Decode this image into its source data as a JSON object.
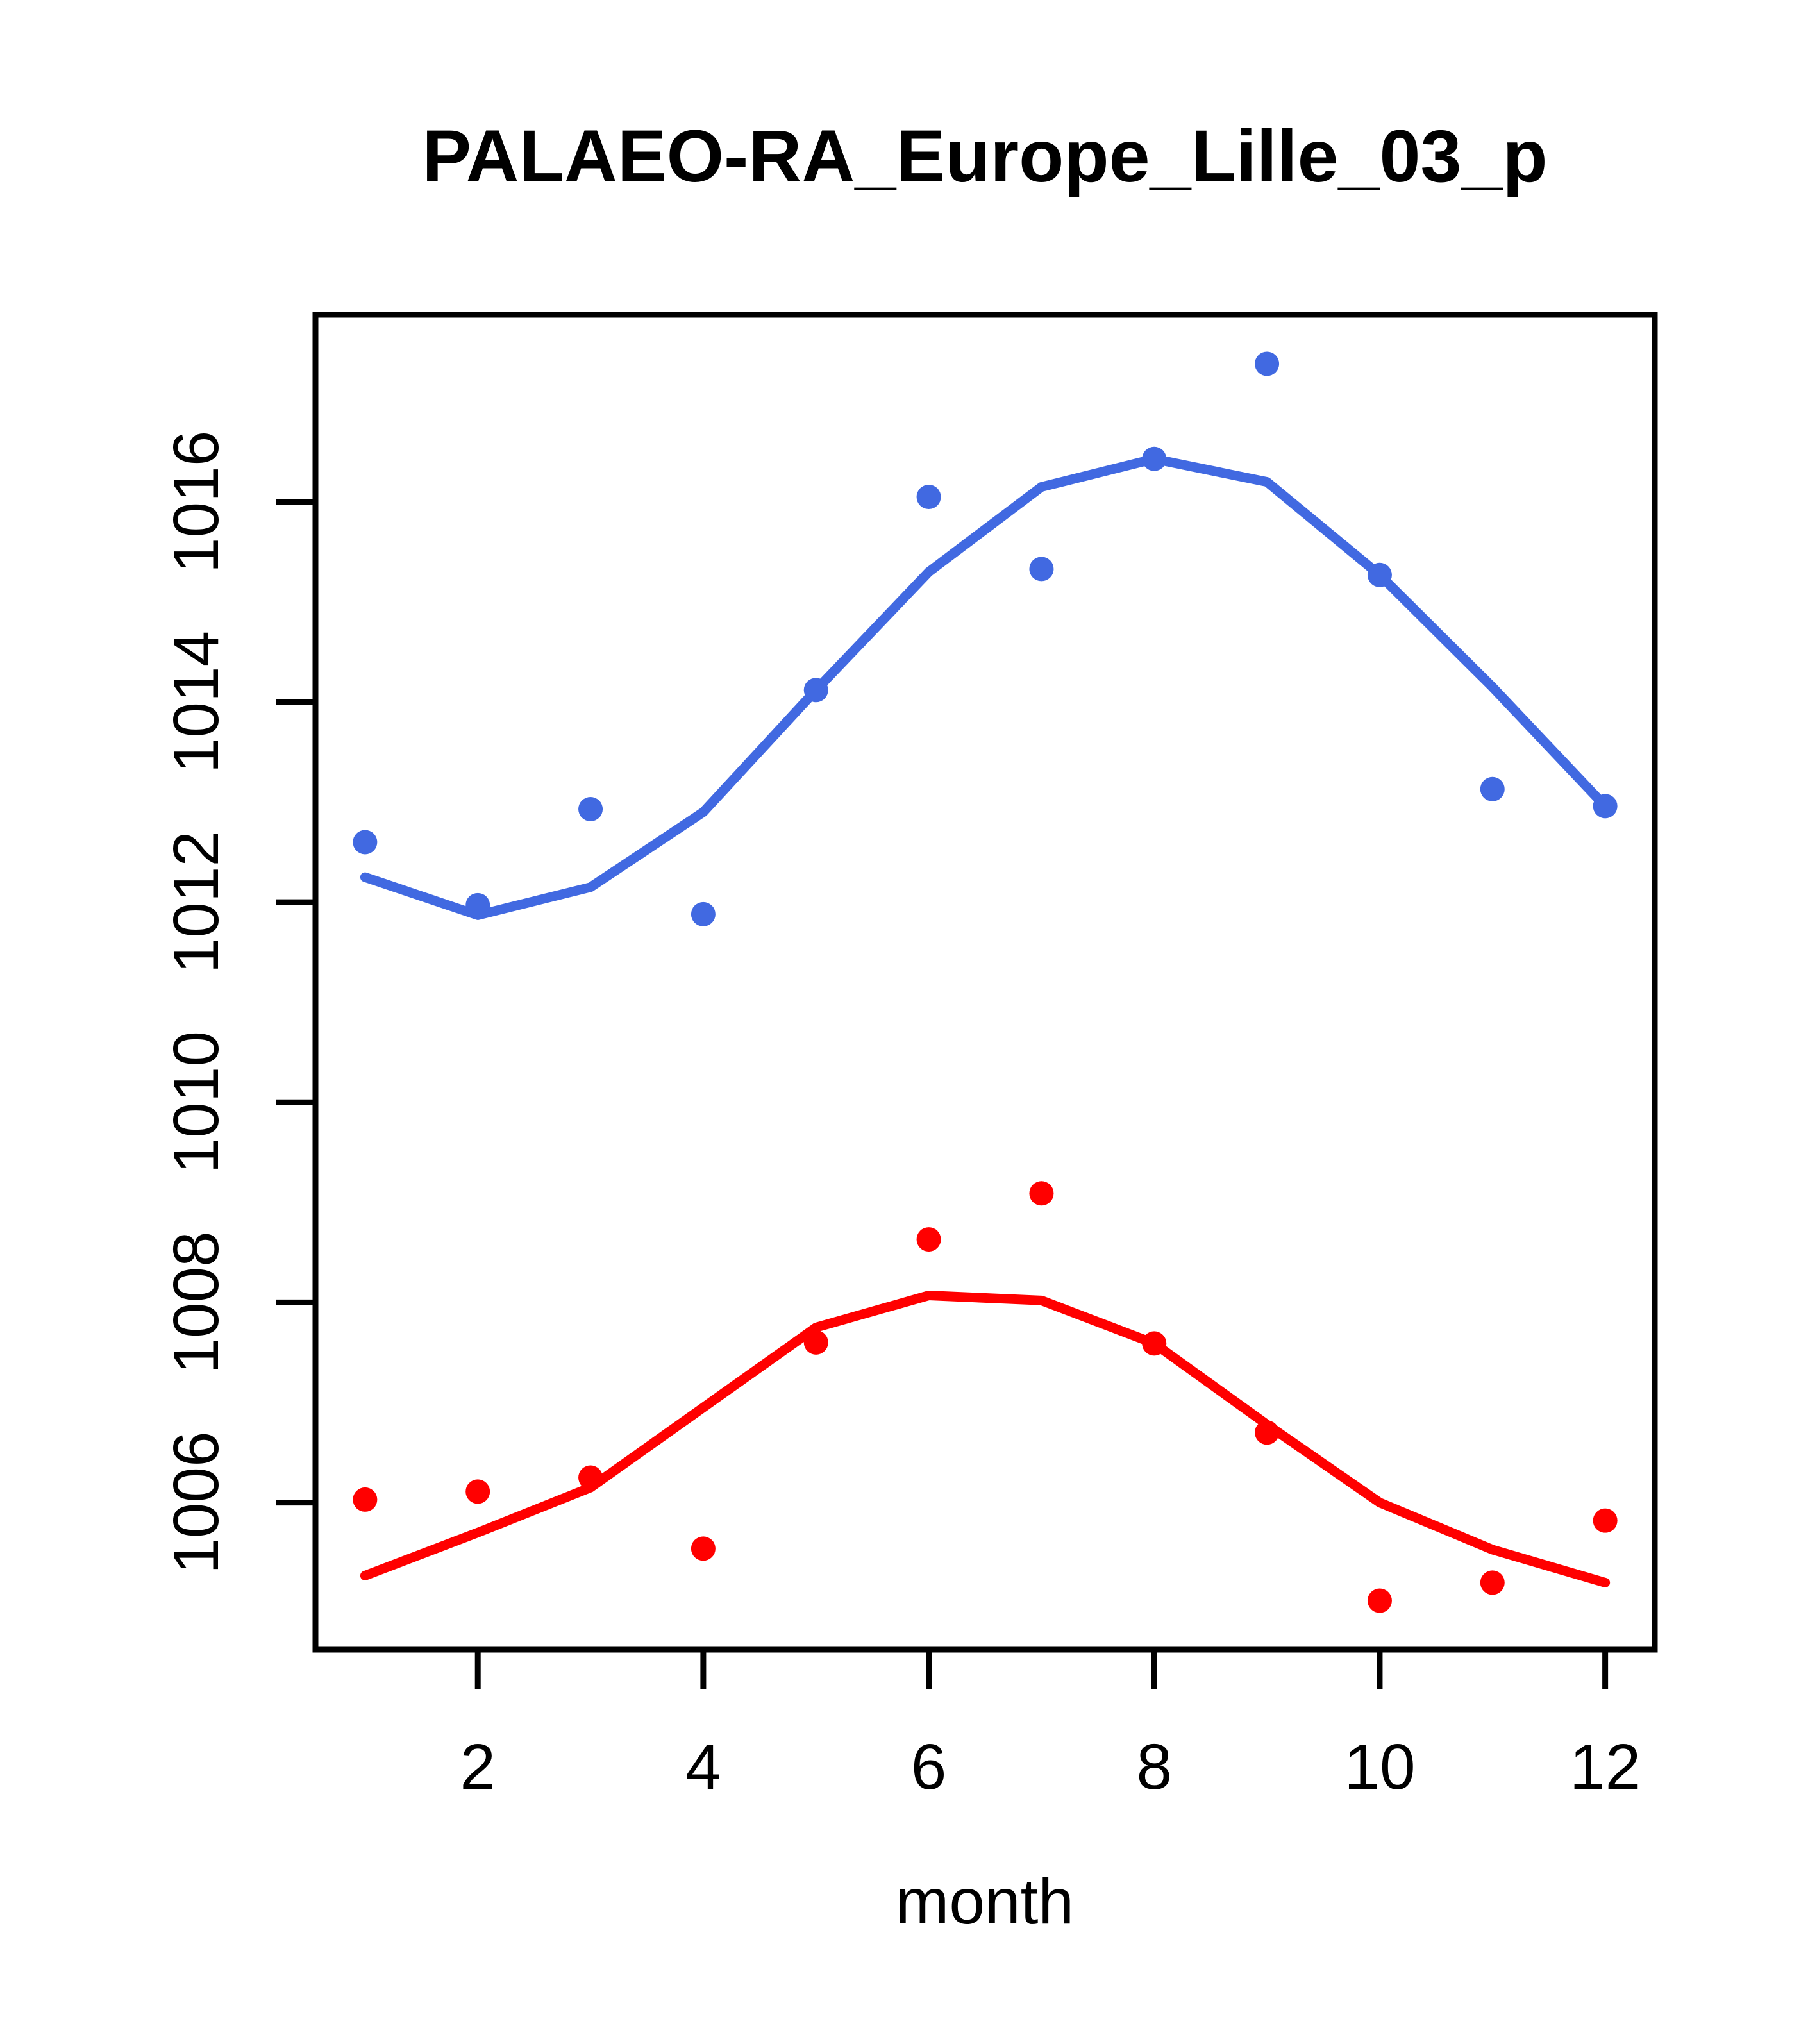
{
  "chart_data": {
    "type": "scatter",
    "title": "PALAEO-RA_Europe_Lille_03_p",
    "xlabel": "month",
    "ylabel": "",
    "x": [
      1,
      2,
      3,
      4,
      5,
      6,
      7,
      8,
      9,
      10,
      11,
      12
    ],
    "xlim": [
      0.56,
      12.44
    ],
    "ylim": [
      1004.53,
      1017.87
    ],
    "x_ticks": [
      2,
      4,
      6,
      8,
      10,
      12
    ],
    "y_ticks": [
      1006,
      1008,
      1010,
      1012,
      1014,
      1016
    ],
    "grid": false,
    "legend": "none",
    "background": "#FFFFFF",
    "axis_color": "#000000",
    "series": [
      {
        "name": "blue-points",
        "style": "points",
        "color": "#4169E1",
        "values": [
          1012.6,
          1011.97,
          1012.93,
          1011.88,
          1014.12,
          1016.05,
          1015.33,
          1016.43,
          1017.38,
          1015.27,
          1013.13,
          1012.96
        ]
      },
      {
        "name": "blue-line",
        "style": "line",
        "color": "#4169E1",
        "values": [
          1012.25,
          1011.87,
          1012.15,
          1012.9,
          1014.12,
          1015.3,
          1016.15,
          1016.43,
          1016.2,
          1015.27,
          1014.15,
          1012.96
        ]
      },
      {
        "name": "red-points",
        "style": "points",
        "color": "#FF0000",
        "values": [
          1006.03,
          1006.11,
          1006.25,
          1005.54,
          1007.6,
          1008.63,
          1009.09,
          1007.59,
          1006.7,
          1005.02,
          1005.2,
          1005.82
        ]
      },
      {
        "name": "red-line",
        "style": "line",
        "color": "#FF0000",
        "values": [
          1005.27,
          1005.7,
          1006.15,
          1006.95,
          1007.75,
          1008.07,
          1008.02,
          1007.59,
          1006.78,
          1006.0,
          1005.53,
          1005.2
        ]
      }
    ]
  }
}
